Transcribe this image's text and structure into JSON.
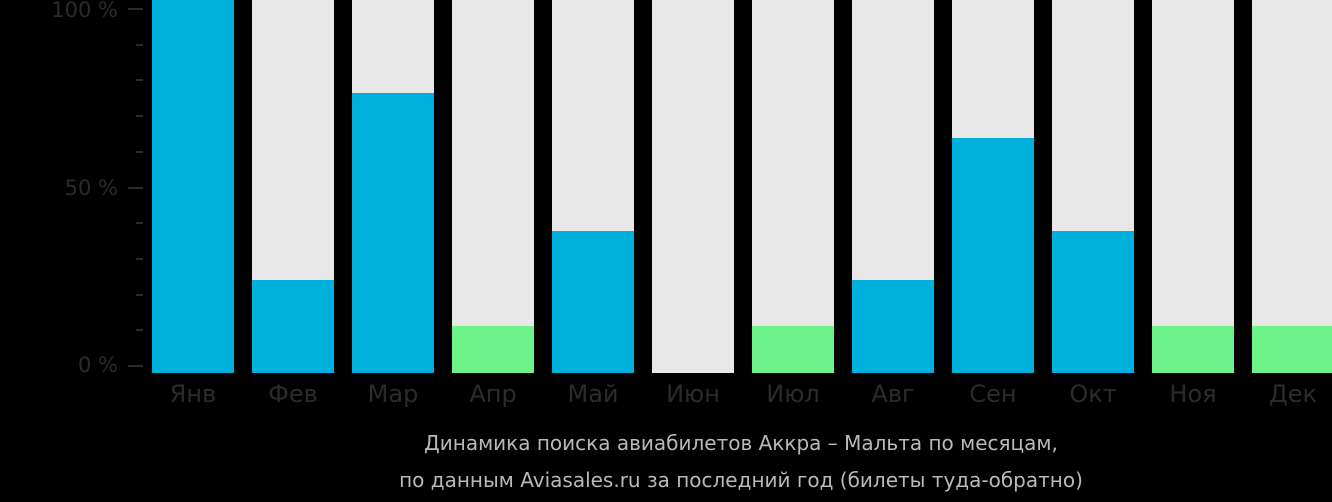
{
  "chart_data": {
    "type": "bar",
    "title": "Динамика поиска авиабилетов Аккра – Мальта по месяцам, по данным Aviasales.ru за последний год (билеты туда-обратно)",
    "xlabel": "",
    "ylabel": "",
    "ylim": [
      0,
      100
    ],
    "y_ticks": [
      "100 %",
      "50 %",
      "0 %"
    ],
    "categories": [
      "Янв",
      "Фев",
      "Мар",
      "Апр",
      "Май",
      "Июн",
      "Июл",
      "Авг",
      "Сен",
      "Окт",
      "Ноя",
      "Дек"
    ],
    "values": [
      100,
      25,
      75,
      12.5,
      38,
      0,
      12.5,
      25,
      63,
      38,
      12.5,
      12.5
    ],
    "bar_colors": [
      "#00b0dc",
      "#00b0dc",
      "#00b0dc",
      "#6ef28a",
      "#00b0dc",
      "#00b0dc",
      "#6ef28a",
      "#00b0dc",
      "#00b0dc",
      "#00b0dc",
      "#6ef28a",
      "#6ef28a"
    ],
    "background_bar_color": "#e8e8e8",
    "grid": false,
    "legend": null
  },
  "axis": {
    "y_labels": [
      "100 %",
      "50 %",
      "0 %"
    ]
  },
  "caption": {
    "line1": "Динамика поиска авиабилетов Аккра – Мальта по месяцам,",
    "line2": "по данным Aviasales.ru за последний год (билеты туда-обратно)"
  },
  "colors": {
    "primary": "#00b0dc",
    "low": "#6ef28a",
    "track": "#e8e8e8",
    "axis_text": "#2b2b2b",
    "caption_text": "#b9b9b9"
  }
}
